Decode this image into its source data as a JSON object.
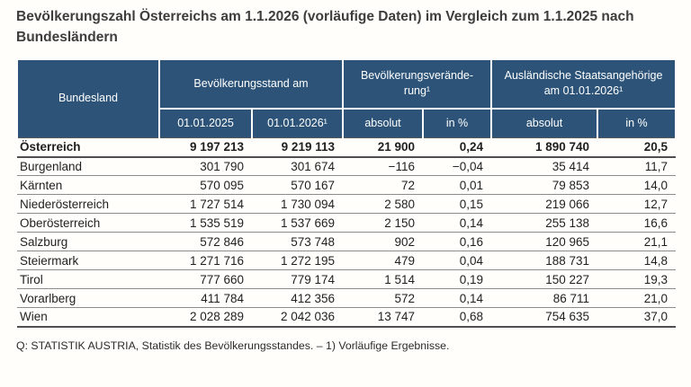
{
  "page": {
    "title": "Bevölkerungszahl Österreichs am 1.1.2026 (vorläufige Daten) im Vergleich zum 1.1.2025 nach\nBundesländern",
    "source_note": "Q: STATISTIK AUSTRIA, Statistik des Bevölkerungsstandes. – 1) Vorläufige Ergebnisse."
  },
  "colors": {
    "header_bg": "#2d5478",
    "header_text": "#ffffff",
    "row_border": "#8c8c8c",
    "strong_border": "#4f4f4f",
    "title_text": "#3d3d3d"
  },
  "table": {
    "header": {
      "col_bundesland": "Bundesland",
      "group_population": "Bevölkerungsstand am",
      "sub_2025": "01.01.2025",
      "sub_2026": "01.01.2026¹",
      "group_change": "Bevölkerungsverände-\nrung¹",
      "sub_change_abs": "absolut",
      "sub_change_pct": "in %",
      "group_foreign": "Ausländische Staatsangehörige\nam 01.01.2026¹",
      "sub_foreign_abs": "absolut",
      "sub_foreign_pct": "in %"
    },
    "rows": [
      {
        "bundesland": "Österreich",
        "pop_2025": "9 197 213",
        "pop_2026": "9 219 113",
        "change_abs": "21 900",
        "change_pct": "0,24",
        "foreign_abs": "1 890 740",
        "foreign_pct": "20,5",
        "bold": true
      },
      {
        "bundesland": "Burgenland",
        "pop_2025": "301 790",
        "pop_2026": "301 674",
        "change_abs": "−116",
        "change_pct": "−0,04",
        "foreign_abs": "35 414",
        "foreign_pct": "11,7",
        "bold": false
      },
      {
        "bundesland": "Kärnten",
        "pop_2025": "570 095",
        "pop_2026": "570 167",
        "change_abs": "72",
        "change_pct": "0,01",
        "foreign_abs": "79 853",
        "foreign_pct": "14,0",
        "bold": false
      },
      {
        "bundesland": "Niederösterreich",
        "pop_2025": "1 727 514",
        "pop_2026": "1 730 094",
        "change_abs": "2 580",
        "change_pct": "0,15",
        "foreign_abs": "219 066",
        "foreign_pct": "12,7",
        "bold": false
      },
      {
        "bundesland": "Oberösterreich",
        "pop_2025": "1 535 519",
        "pop_2026": "1 537 669",
        "change_abs": "2 150",
        "change_pct": "0,14",
        "foreign_abs": "255 138",
        "foreign_pct": "16,6",
        "bold": false
      },
      {
        "bundesland": "Salzburg",
        "pop_2025": "572 846",
        "pop_2026": "573 748",
        "change_abs": "902",
        "change_pct": "0,16",
        "foreign_abs": "120 965",
        "foreign_pct": "21,1",
        "bold": false
      },
      {
        "bundesland": "Steiermark",
        "pop_2025": "1 271 716",
        "pop_2026": "1 272 195",
        "change_abs": "479",
        "change_pct": "0,04",
        "foreign_abs": "188 731",
        "foreign_pct": "14,8",
        "bold": false
      },
      {
        "bundesland": "Tirol",
        "pop_2025": "777 660",
        "pop_2026": "779 174",
        "change_abs": "1 514",
        "change_pct": "0,19",
        "foreign_abs": "150 227",
        "foreign_pct": "19,3",
        "bold": false
      },
      {
        "bundesland": "Vorarlberg",
        "pop_2025": "411 784",
        "pop_2026": "412 356",
        "change_abs": "572",
        "change_pct": "0,14",
        "foreign_abs": "86 711",
        "foreign_pct": "21,0",
        "bold": false
      },
      {
        "bundesland": "Wien",
        "pop_2025": "2 028 289",
        "pop_2026": "2 042 036",
        "change_abs": "13 747",
        "change_pct": "0,68",
        "foreign_abs": "754 635",
        "foreign_pct": "37,0",
        "bold": false
      }
    ]
  }
}
